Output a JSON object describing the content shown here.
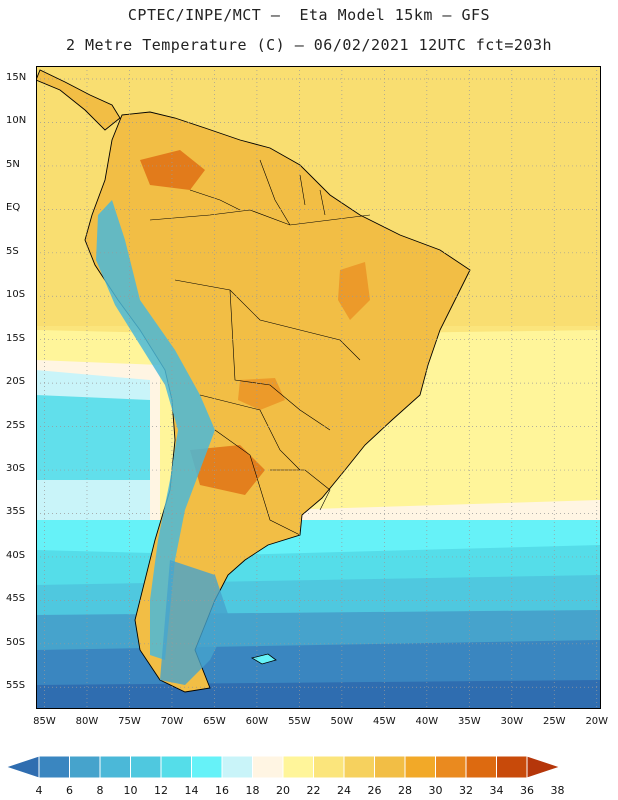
{
  "header": {
    "line1": "CPTEC/INPE/MCT –  Eta Model 15km – GFS",
    "line2": "2 Metre Temperature (C) – 06/02/2021 12UTC fct=203h"
  },
  "map": {
    "lat_labels": [
      "15N",
      "10N",
      "5N",
      "EQ",
      "5S",
      "10S",
      "15S",
      "20S",
      "25S",
      "30S",
      "35S",
      "40S",
      "45S",
      "50S",
      "55S"
    ],
    "lon_labels": [
      "85W",
      "80W",
      "75W",
      "70W",
      "65W",
      "60W",
      "55W",
      "50W",
      "45W",
      "40W",
      "35W",
      "30W",
      "25W",
      "20W"
    ],
    "lat_extent": [
      -57.5,
      16.5
    ],
    "lon_extent": [
      -86,
      -19.5
    ],
    "gridlines": "dotted"
  },
  "colorbar": {
    "labels": [
      "4",
      "6",
      "8",
      "10",
      "12",
      "14",
      "16",
      "18",
      "20",
      "22",
      "24",
      "26",
      "28",
      "30",
      "32",
      "34",
      "36",
      "38"
    ],
    "colors": [
      "#2f6db0",
      "#3a86c0",
      "#46a3cc",
      "#4bb8d8",
      "#4fc8df",
      "#55dde9",
      "#66f2f8",
      "#c9f4f9",
      "#fff5e3",
      "#fff59a",
      "#fbe57c",
      "#f6d15e",
      "#f2be45",
      "#f2a928",
      "#ea8a1f",
      "#dd6a10",
      "#c84a0a",
      "#b5360a"
    ]
  }
}
